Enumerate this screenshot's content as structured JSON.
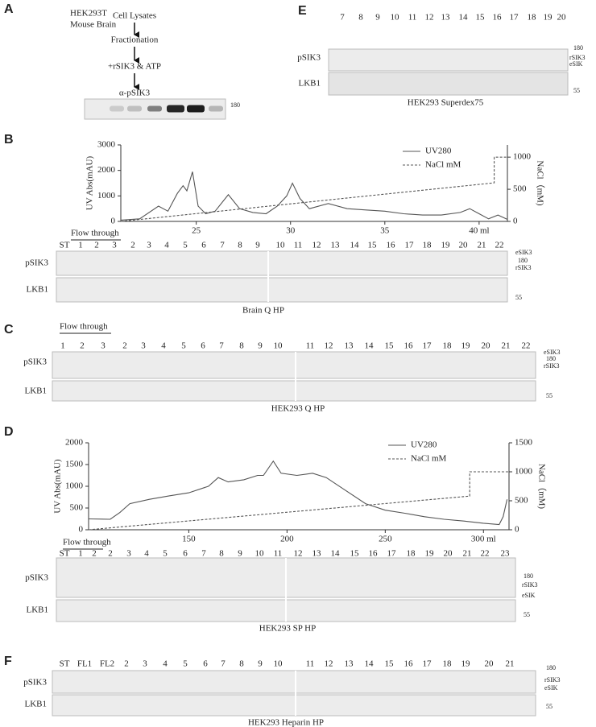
{
  "panels": {
    "a": {
      "label": "A",
      "samples": [
        "HEK293T",
        "Mouse Brain"
      ],
      "steps": [
        "Cell Lysates",
        "Fractionation",
        "+rSIK3 & ATP",
        "α-pSIK3"
      ],
      "markers": [
        "180"
      ]
    },
    "e": {
      "label": "E",
      "fractions": [
        "7",
        "8",
        "9",
        "10",
        "11",
        "12",
        "13",
        "14",
        "15",
        "16",
        "17",
        "18",
        "19",
        "20"
      ],
      "rows": [
        "pSIK3",
        "LKB1"
      ],
      "markers": [
        "180",
        "rSIK3",
        "eSIK",
        "55"
      ],
      "caption": "HEK293 Superdex75"
    },
    "b": {
      "label": "B",
      "chart_data": {
        "type": "line",
        "ylabel": "UV Abs(mAU)",
        "y2label": "NaCl（mM)",
        "xlim": [
          21,
          41.5
        ],
        "xticks": [
          25,
          30,
          35,
          {
            "value": 40,
            "label": "40 ml"
          }
        ],
        "ylim": [
          0,
          3000
        ],
        "yticks": [
          0,
          1000,
          2000,
          3000
        ],
        "y2lim": [
          0,
          1190
        ],
        "y2ticks": [
          0,
          500,
          1000
        ],
        "series": [
          {
            "name": "UV280",
            "color": "#555555",
            "style": "solid",
            "x": [
              21,
              22,
              23,
              23.5,
              24,
              24.3,
              24.5,
              24.8,
              25.1,
              25.5,
              26,
              26.7,
              27.3,
              28,
              28.7,
              29.3,
              29.8,
              30.1,
              30.5,
              31,
              32,
              33,
              34,
              35,
              36,
              37,
              38,
              39,
              39.5,
              40,
              40.5,
              41,
              41.5
            ],
            "values": [
              50,
              100,
              600,
              400,
              1100,
              1400,
              1200,
              1950,
              600,
              300,
              400,
              1050,
              500,
              350,
              300,
              600,
              1000,
              1500,
              900,
              500,
              700,
              500,
              450,
              400,
              300,
              250,
              250,
              350,
              500,
              300,
              100,
              250,
              80
            ]
          },
          {
            "name": "NaCl mM",
            "color": "#555555",
            "style": "dashed",
            "axis": "y2",
            "x": [
              21,
              40.8,
              40.8,
              41.5
            ],
            "values": [
              0,
              600,
              1000,
              1000
            ]
          }
        ]
      },
      "blot": {
        "flow_through": "Flow through",
        "fractions": [
          "ST",
          "1",
          "2",
          "3",
          "2",
          "3",
          "4",
          "5",
          "6",
          "7",
          "8",
          "9",
          "10",
          "11",
          "12",
          "13",
          "14",
          "15",
          "16",
          "17",
          "18",
          "19",
          "20",
          "21",
          "22"
        ],
        "rows": [
          "pSIK3",
          "LKB1"
        ],
        "markers": [
          "eSIK3",
          "180",
          "rSIK3",
          "55"
        ],
        "caption": "Brain  Q HP"
      }
    },
    "c": {
      "label": "C",
      "blot": {
        "flow_through": "Flow through",
        "fractions": [
          "1",
          "2",
          "3",
          "2",
          "3",
          "4",
          "5",
          "6",
          "7",
          "8",
          "9",
          "10",
          "11",
          "12",
          "13",
          "14",
          "15",
          "16",
          "17",
          "18",
          "19",
          "20",
          "21",
          "22"
        ],
        "rows": [
          "pSIK3",
          "LKB1"
        ],
        "markers": [
          "eSIK3",
          "180",
          "rSIK3",
          "55"
        ],
        "caption": "HEK293 Q HP"
      }
    },
    "d": {
      "label": "D",
      "chart_data": {
        "type": "line",
        "ylabel": "UV Abs(mAU)",
        "y2label": "NaCl（mM)",
        "xlim": [
          99,
          313
        ],
        "xticks": [
          150,
          200,
          250,
          {
            "value": 300,
            "label": "300 ml"
          }
        ],
        "ylim": [
          0,
          2000
        ],
        "yticks": [
          0,
          500,
          1000,
          1500,
          2000
        ],
        "y2lim": [
          0,
          1500
        ],
        "y2ticks": [
          0,
          500,
          1000,
          1500
        ],
        "series": [
          {
            "name": "UV280",
            "color": "#555555",
            "style": "solid",
            "x": [
              99,
              110,
              115,
              120,
              130,
              140,
              150,
              160,
              165,
              170,
              178,
              185,
              188,
              193,
              197,
              205,
              213,
              220,
              230,
              240,
              250,
              260,
              270,
              280,
              290,
              300,
              308,
              310,
              312
            ],
            "values": [
              250,
              240,
              400,
              600,
              700,
              780,
              850,
              1000,
              1200,
              1100,
              1150,
              1250,
              1250,
              1580,
              1300,
              1250,
              1300,
              1200,
              900,
              600,
              450,
              380,
              300,
              240,
              200,
              150,
              120,
              300,
              700
            ]
          },
          {
            "name": "NaCl mM",
            "color": "#555555",
            "style": "dashed",
            "axis": "y2",
            "x": [
              99,
              293,
              293,
              313
            ],
            "values": [
              0,
              580,
              1000,
              1000
            ]
          }
        ]
      },
      "blot": {
        "flow_through": "Flow through",
        "fractions": [
          "ST",
          "1",
          "2",
          "2",
          "3",
          "4",
          "5",
          "6",
          "7",
          "8",
          "9",
          "10",
          "11",
          "12",
          "13",
          "14",
          "15",
          "16",
          "17",
          "18",
          "19",
          "20",
          "21",
          "22",
          "23"
        ],
        "rows": [
          "pSIK3",
          "LKB1"
        ],
        "markers": [
          "180",
          "rSIK3",
          "eSIK",
          "55"
        ],
        "caption": "HEK293 SP HP"
      }
    },
    "f": {
      "label": "F",
      "blot": {
        "fractions": [
          "ST",
          "FL1",
          "FL2",
          "2",
          "3",
          "4",
          "5",
          "6",
          "7",
          "8",
          "9",
          "10",
          "11",
          "12",
          "13",
          "14",
          "15",
          "16",
          "17",
          "18",
          "19",
          "20",
          "21"
        ],
        "rows": [
          "pSIK3",
          "LKB1"
        ],
        "markers": [
          "180",
          "rSIK3",
          "eSIK",
          "55"
        ],
        "caption": "HEK293 Heparin  HP"
      }
    }
  }
}
